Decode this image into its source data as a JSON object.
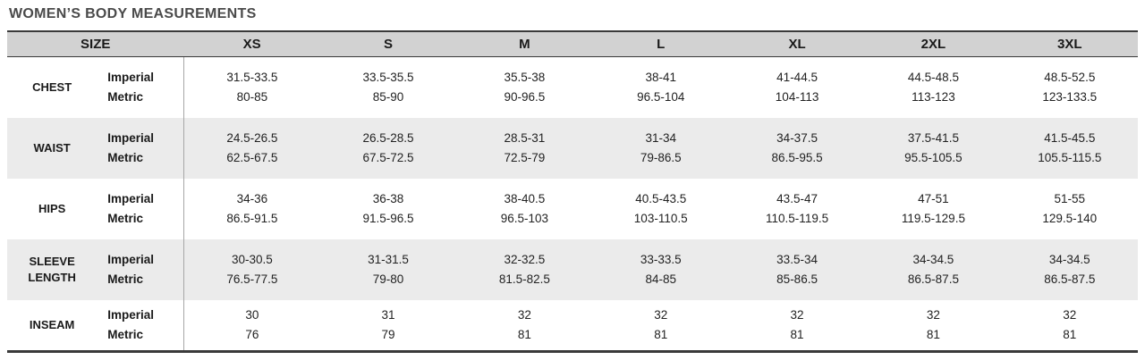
{
  "title": "WOMEN’S BODY MEASUREMENTS",
  "table": {
    "size_header": "SIZE",
    "sizes": [
      "XS",
      "S",
      "M",
      "L",
      "XL",
      "2XL",
      "3XL"
    ],
    "units": [
      "Imperial",
      "Metric"
    ],
    "rows": [
      {
        "label": "CHEST",
        "imperial": [
          "31.5-33.5",
          "33.5-35.5",
          "35.5-38",
          "38-41",
          "41-44.5",
          "44.5-48.5",
          "48.5-52.5"
        ],
        "metric": [
          "80-85",
          "85-90",
          "90-96.5",
          "96.5-104",
          "104-113",
          "113-123",
          "123-133.5"
        ]
      },
      {
        "label": "WAIST",
        "imperial": [
          "24.5-26.5",
          "26.5-28.5",
          "28.5-31",
          "31-34",
          "34-37.5",
          "37.5-41.5",
          "41.5-45.5"
        ],
        "metric": [
          "62.5-67.5",
          "67.5-72.5",
          "72.5-79",
          "79-86.5",
          "86.5-95.5",
          "95.5-105.5",
          "105.5-115.5"
        ]
      },
      {
        "label": "HIPS",
        "imperial": [
          "34-36",
          "36-38",
          "38-40.5",
          "40.5-43.5",
          "43.5-47",
          "47-51",
          "51-55"
        ],
        "metric": [
          "86.5-91.5",
          "91.5-96.5",
          "96.5-103",
          "103-110.5",
          "110.5-119.5",
          "119.5-129.5",
          "129.5-140"
        ]
      },
      {
        "label": "SLEEVE LENGTH",
        "imperial": [
          "30-30.5",
          "31-31.5",
          "32-32.5",
          "33-33.5",
          "33.5-34",
          "34-34.5",
          "34-34.5"
        ],
        "metric": [
          "76.5-77.5",
          "79-80",
          "81.5-82.5",
          "84-85",
          "85-86.5",
          "86.5-87.5",
          "86.5-87.5"
        ]
      },
      {
        "label": "INSEAM",
        "imperial": [
          "30",
          "31",
          "32",
          "32",
          "32",
          "32",
          "32"
        ],
        "metric": [
          "76",
          "79",
          "81",
          "81",
          "81",
          "81",
          "81"
        ]
      }
    ]
  },
  "colors": {
    "header_bg": "#d2d2d2",
    "alt_row_bg": "#ebebeb",
    "border_dark": "#3a3a3a",
    "divider": "#a6a6a6",
    "title_text": "#4a4a4a",
    "body_text": "#212121"
  }
}
